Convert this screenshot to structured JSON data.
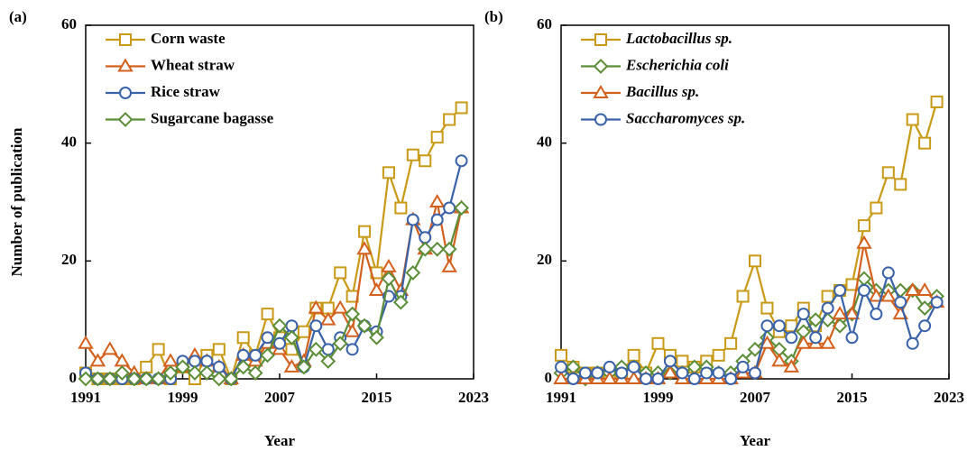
{
  "chart_data": [
    {
      "type": "line",
      "panel_label": "(a)",
      "xlabel": "Year",
      "ylabel": "Number of publication",
      "x": [
        1991,
        1992,
        1993,
        1994,
        1995,
        1996,
        1997,
        1998,
        1999,
        2000,
        2001,
        2002,
        2003,
        2004,
        2005,
        2006,
        2007,
        2008,
        2009,
        2010,
        2011,
        2012,
        2013,
        2014,
        2015,
        2016,
        2017,
        2018,
        2019,
        2020,
        2021,
        2022
      ],
      "xlim": [
        1991,
        2023
      ],
      "xticks": [
        1991,
        1999,
        2007,
        2015,
        2023
      ],
      "ylim": [
        0,
        60
      ],
      "yticks": [
        0,
        20,
        40,
        60
      ],
      "legend_italic": false,
      "series": [
        {
          "name": "Corn waste",
          "color": "#C99A16",
          "marker": "square",
          "values": [
            1,
            0,
            0,
            0,
            0,
            2,
            5,
            0,
            2,
            0,
            4,
            5,
            0,
            7,
            4,
            11,
            7,
            5,
            8,
            12,
            12,
            18,
            14,
            25,
            18,
            35,
            29,
            38,
            37,
            41,
            44,
            46
          ]
        },
        {
          "name": "Wheat straw",
          "color": "#D3601C",
          "marker": "triangle",
          "values": [
            6,
            3,
            5,
            3,
            1,
            0,
            0,
            3,
            2,
            4,
            3,
            2,
            0,
            4,
            3,
            6,
            5,
            2,
            3,
            12,
            10,
            12,
            8,
            22,
            15,
            19,
            15,
            27,
            22,
            30,
            19,
            29
          ]
        },
        {
          "name": "Rice straw",
          "color": "#3A62A8",
          "marker": "circle",
          "values": [
            1,
            0,
            0,
            0,
            0,
            0,
            0,
            0,
            3,
            3,
            3,
            2,
            0,
            4,
            4,
            7,
            6,
            9,
            2,
            9,
            5,
            7,
            5,
            9,
            8,
            14,
            14,
            27,
            24,
            27,
            29,
            37
          ]
        },
        {
          "name": "Sugarcane bagasse",
          "color": "#5B8E37",
          "marker": "diamond",
          "values": [
            0,
            0,
            0,
            1,
            0,
            0,
            0,
            1,
            2,
            1,
            1,
            0,
            0,
            2,
            1,
            4,
            9,
            7,
            2,
            5,
            3,
            6,
            11,
            9,
            7,
            17,
            13,
            18,
            22,
            22,
            22,
            29
          ]
        }
      ]
    },
    {
      "type": "line",
      "panel_label": "(b)",
      "xlabel": "Year",
      "x": [
        1991,
        1992,
        1993,
        1994,
        1995,
        1996,
        1997,
        1998,
        1999,
        2000,
        2001,
        2002,
        2003,
        2004,
        2005,
        2006,
        2007,
        2008,
        2009,
        2010,
        2011,
        2012,
        2013,
        2014,
        2015,
        2016,
        2017,
        2018,
        2019,
        2020,
        2021,
        2022
      ],
      "xlim": [
        1991,
        2023
      ],
      "xticks": [
        1991,
        1999,
        2007,
        2015,
        2023
      ],
      "ylim": [
        0,
        60
      ],
      "yticks": [
        0,
        20,
        40,
        60
      ],
      "legend_italic": true,
      "series": [
        {
          "name": "Lactobacillus sp.",
          "color": "#C99A16",
          "marker": "square",
          "values": [
            4,
            2,
            1,
            1,
            1,
            1,
            4,
            1,
            6,
            4,
            3,
            2,
            3,
            4,
            6,
            14,
            20,
            12,
            8,
            9,
            12,
            9,
            14,
            15,
            16,
            26,
            29,
            35,
            33,
            44,
            40,
            47
          ]
        },
        {
          "name": "Escherichia coli",
          "color": "#5B8E37",
          "marker": "diamond",
          "values": [
            1,
            2,
            0,
            1,
            1,
            2,
            2,
            1,
            1,
            1,
            1,
            2,
            2,
            1,
            1,
            3,
            5,
            7,
            5,
            3,
            8,
            10,
            10,
            9,
            11,
            17,
            15,
            15,
            15,
            15,
            12,
            14
          ]
        },
        {
          "name": "Bacillus sp.",
          "color": "#D3601C",
          "marker": "triangle",
          "values": [
            0,
            0,
            0,
            0,
            0,
            0,
            0,
            0,
            0,
            1,
            0,
            0,
            0,
            0,
            0,
            1,
            1,
            6,
            3,
            2,
            6,
            6,
            6,
            11,
            11,
            23,
            14,
            14,
            11,
            15,
            15,
            13
          ]
        },
        {
          "name": "Saccharomyces sp.",
          "color": "#3A62A8",
          "marker": "circle",
          "values": [
            2,
            0,
            1,
            1,
            2,
            1,
            2,
            0,
            0,
            3,
            1,
            0,
            1,
            1,
            0,
            2,
            1,
            9,
            9,
            7,
            11,
            7,
            12,
            15,
            7,
            15,
            11,
            18,
            13,
            6,
            9,
            13
          ]
        }
      ]
    }
  ]
}
